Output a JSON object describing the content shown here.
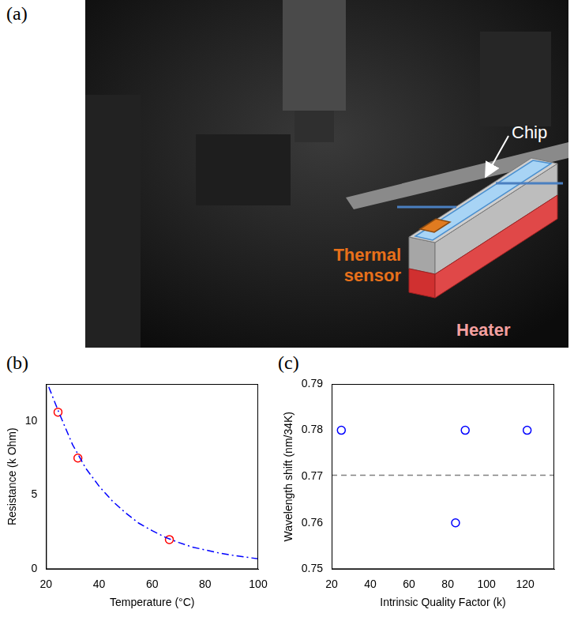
{
  "panel_a": {
    "panel_label": "(a)",
    "labels": {
      "chip": "Chip",
      "thermal_sensor": "Thermal sensor",
      "heater": "Heater"
    }
  },
  "chart_data": [
    {
      "panel_label": "(b)",
      "type": "scatter",
      "x_label": "Temperature (°C)",
      "y_label": "Resistance (k Ohm)",
      "xlim": [
        20,
        100
      ],
      "xticks": [
        20,
        40,
        60,
        80,
        100
      ],
      "ylim": [
        0,
        12.5
      ],
      "yticks": [
        0,
        5,
        10
      ],
      "grid": false,
      "series": [
        {
          "type": "line",
          "line_style": "dashdot",
          "color": "#0000ff",
          "x": [
            21,
            25,
            30,
            35,
            40,
            45,
            50,
            55,
            60,
            65,
            70,
            75,
            80,
            85,
            90,
            95,
            100
          ],
          "values": [
            12.3,
            10.5,
            8.4,
            6.8,
            5.6,
            4.6,
            3.8,
            3.1,
            2.6,
            2.15,
            1.8,
            1.5,
            1.3,
            1.1,
            0.95,
            0.82,
            0.7
          ]
        },
        {
          "type": "scatter",
          "marker": "circle",
          "color": "#ff0000",
          "x": [
            24.5,
            32,
            66.5
          ],
          "values": [
            10.6,
            7.5,
            2.0
          ]
        }
      ]
    },
    {
      "panel_label": "(c)",
      "type": "scatter",
      "x_label": "Intrinsic Quality Factor (k)",
      "y_label": "Wavelength shift (nm/34K)",
      "xlim": [
        20,
        135
      ],
      "xticks": [
        20,
        40,
        60,
        80,
        100,
        120
      ],
      "ylim": [
        0.75,
        0.79
      ],
      "yticks": [
        0.75,
        0.76,
        0.77,
        0.78,
        0.79
      ],
      "grid": false,
      "series": [
        {
          "type": "scatter",
          "marker": "circle",
          "color": "#0000ff",
          "x": [
            25,
            84,
            89,
            121
          ],
          "values": [
            0.78,
            0.76,
            0.78,
            0.78
          ]
        },
        {
          "type": "line",
          "line_style": "dashed",
          "color": "#808080",
          "x": [
            20,
            135
          ],
          "values": [
            0.7703,
            0.7703
          ]
        }
      ]
    }
  ]
}
